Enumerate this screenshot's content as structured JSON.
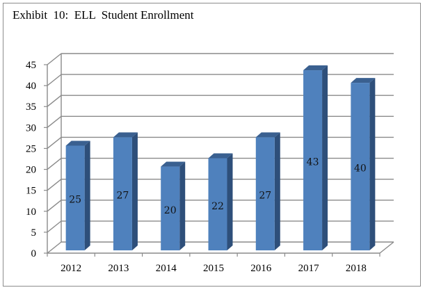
{
  "chart_data": {
    "type": "bar",
    "title": "Exhibit  10:  ELL  Student Enrollment",
    "categories": [
      "2012",
      "2013",
      "2014",
      "2015",
      "2016",
      "2017",
      "2018"
    ],
    "values": [
      25,
      27,
      20,
      22,
      27,
      43,
      40
    ],
    "data_labels": [
      "25",
      "27",
      "20",
      "22",
      "27",
      "43",
      "40"
    ],
    "ylim": [
      0,
      45
    ],
    "yticks": [
      "0",
      "5",
      "10",
      "15",
      "20",
      "25",
      "30",
      "35",
      "40",
      "45"
    ],
    "xlabel": "",
    "ylabel": "",
    "grid": true,
    "legend": "none",
    "bar_color": "#4f81bd",
    "bar_side_color": "#2e4f7a",
    "bar_top_color": "#3a6090"
  }
}
